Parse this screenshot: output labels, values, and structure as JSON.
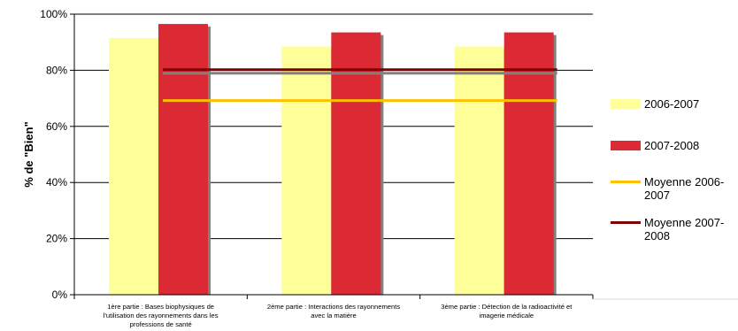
{
  "chart_data": {
    "type": "bar",
    "ylabel": "% de \"Bien\"",
    "ylim": [
      0,
      100
    ],
    "yticks": [
      0,
      20,
      40,
      60,
      80,
      100
    ],
    "ytick_labels": [
      "0%",
      "20%",
      "40%",
      "60%",
      "80%",
      "100%"
    ],
    "categories": [
      [
        "1ère partie : Bases biophysiques de",
        "l'utilisation des rayonnements dans les",
        "professions de santé"
      ],
      [
        "2ème partie : Interactions des rayonnements",
        "avec la matière"
      ],
      [
        "3ème partie : Détection de la radioactivité et",
        "imagerie médicale"
      ]
    ],
    "series": [
      {
        "name": "2006-2007",
        "type": "bar",
        "color": "#ffff99",
        "values": [
          91.5,
          88.5,
          88.5
        ]
      },
      {
        "name": "2007-2008",
        "type": "bar",
        "color": "#dc2a35",
        "values": [
          96.5,
          93.5,
          93.5
        ]
      },
      {
        "name": "Moyenne 2006-2007",
        "type": "line",
        "color": "#ffc000",
        "value": 69.2
      },
      {
        "name": "Moyenne 2007-2008",
        "type": "line",
        "color": "#7f0000",
        "value": 80.2
      }
    ],
    "grid": true,
    "legend": "right"
  }
}
